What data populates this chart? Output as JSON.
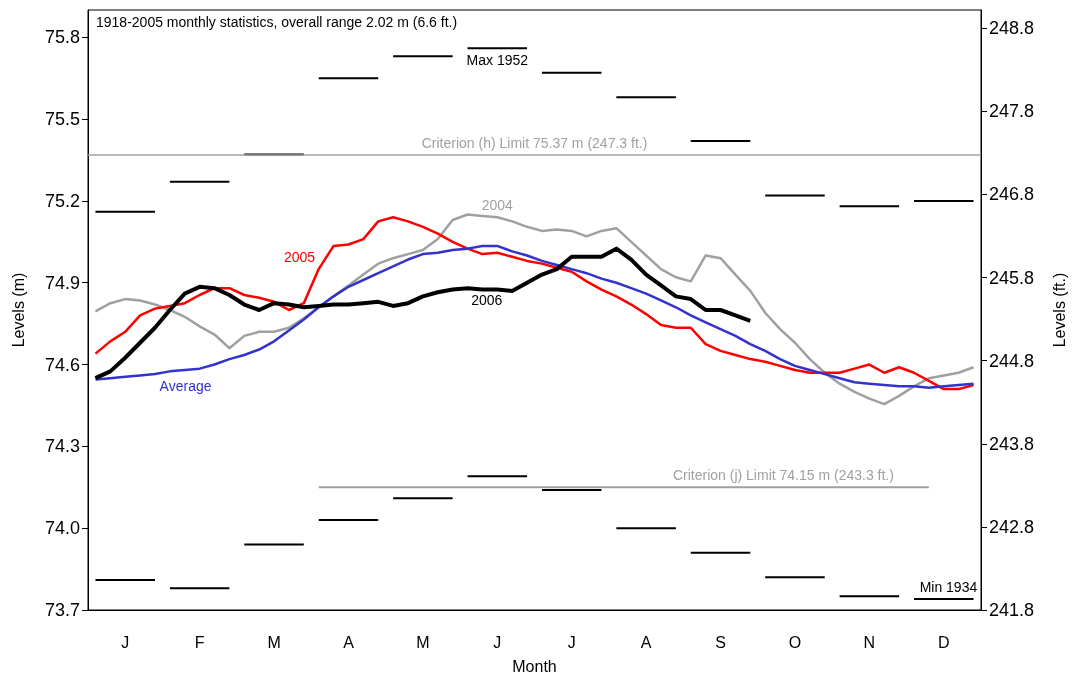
{
  "chart_data": {
    "type": "line",
    "xlabel": "Month",
    "ylabel": "Levels (m)",
    "y2label": "Levels (ft.)",
    "categories": [
      null,
      null,
      "J",
      null,
      null,
      null,
      null,
      "F",
      null,
      null,
      null,
      null,
      "M",
      null,
      null,
      null,
      null,
      "A",
      null,
      null,
      null,
      null,
      "M",
      null,
      null,
      null,
      null,
      "J",
      null,
      null,
      null,
      null,
      "J",
      null,
      null,
      null,
      null,
      "A",
      null,
      null,
      null,
      null,
      "S",
      null,
      null,
      null,
      null,
      "O",
      null,
      null,
      null,
      null,
      "N",
      null,
      null,
      null,
      null,
      "D",
      null,
      null
    ],
    "ylim": [
      73.7,
      75.9
    ],
    "yticks": [
      73.7,
      {
        "value": 74,
        "label": "74.0"
      },
      74.3,
      74.6,
      74.9,
      75.2,
      75.5,
      75.8
    ],
    "y2lim": [
      241.8,
      249.02
    ],
    "y2ticks": [
      241.8,
      242.8,
      243.8,
      244.8,
      245.8,
      246.8,
      247.8,
      248.8
    ],
    "grid": false,
    "legend": false,
    "marker": "none",
    "series": [
      {
        "color": "#000000",
        "values": [
          75.16,
          75.16,
          75.16,
          75.16,
          75.16,
          null,
          null,
          null,
          null,
          null,
          75.37,
          75.37,
          75.37,
          75.37,
          75.37,
          null,
          null,
          null,
          null,
          null,
          75.73,
          75.73,
          75.73,
          75.73,
          75.73,
          null,
          null,
          null,
          null,
          null,
          75.67,
          75.67,
          75.67,
          75.67,
          75.67,
          null,
          null,
          null,
          null,
          null,
          75.42,
          75.42,
          75.42,
          75.42,
          75.42,
          null,
          null,
          null,
          null,
          null,
          75.18,
          75.18,
          75.18,
          75.18,
          75.18,
          null,
          null,
          null,
          null,
          null
        ]
      },
      {
        "color": "#000000",
        "values": [
          null,
          null,
          null,
          null,
          null,
          75.27,
          75.27,
          75.27,
          75.27,
          75.27,
          null,
          null,
          null,
          null,
          null,
          75.65,
          75.65,
          75.65,
          75.65,
          75.65,
          null,
          null,
          null,
          null,
          null,
          75.76,
          75.76,
          75.76,
          75.76,
          75.76,
          null,
          null,
          null,
          null,
          null,
          75.58,
          75.58,
          75.58,
          75.58,
          75.58,
          null,
          null,
          null,
          null,
          null,
          75.22,
          75.22,
          75.22,
          75.22,
          75.22,
          null,
          null,
          null,
          null,
          null,
          75.2,
          75.2,
          75.2,
          75.2,
          75.2
        ]
      },
      {
        "color": "#000000",
        "values": [
          73.81,
          73.81,
          73.81,
          73.81,
          73.81,
          null,
          null,
          null,
          null,
          null,
          73.94,
          73.94,
          73.94,
          73.94,
          73.94,
          null,
          null,
          null,
          null,
          null,
          74.11,
          74.11,
          74.11,
          74.11,
          74.11,
          null,
          null,
          null,
          null,
          null,
          74.14,
          74.14,
          74.14,
          74.14,
          74.14,
          null,
          null,
          null,
          null,
          null,
          73.91,
          73.91,
          73.91,
          73.91,
          73.91,
          null,
          null,
          null,
          null,
          null,
          73.75,
          73.75,
          73.75,
          73.75,
          73.75,
          null,
          null,
          null,
          null,
          null
        ]
      },
      {
        "color": "#000000",
        "values": [
          null,
          null,
          null,
          null,
          null,
          73.78,
          73.78,
          73.78,
          73.78,
          73.78,
          null,
          null,
          null,
          null,
          null,
          74.03,
          74.03,
          74.03,
          74.03,
          74.03,
          null,
          null,
          null,
          null,
          null,
          74.19,
          74.19,
          74.19,
          74.19,
          74.19,
          null,
          null,
          null,
          null,
          null,
          74.0,
          74.0,
          74.0,
          74.0,
          74.0,
          null,
          null,
          null,
          null,
          null,
          73.82,
          73.82,
          73.82,
          73.82,
          73.82,
          null,
          null,
          null,
          null,
          null,
          73.74,
          73.74,
          73.74,
          73.74,
          73.74
        ]
      },
      {
        "color": "#a0a0a0",
        "values": [
          null,
          null,
          null,
          null,
          null,
          null,
          null,
          null,
          null,
          null,
          null,
          null,
          null,
          null,
          null,
          74.15,
          74.15,
          74.15,
          74.15,
          74.15,
          74.15,
          74.15,
          74.15,
          74.15,
          74.15,
          74.15,
          74.15,
          74.15,
          74.15,
          74.15,
          74.15,
          74.15,
          74.15,
          74.15,
          74.15,
          74.15,
          74.15,
          74.15,
          74.15,
          74.15,
          74.15,
          74.15,
          74.15,
          74.15,
          74.15,
          74.15,
          74.15,
          74.15,
          74.15,
          74.15,
          74.15,
          74.15,
          74.15,
          74.15,
          74.15,
          74.15,
          74.15,
          null,
          null,
          null
        ]
      },
      {
        "name": "2004",
        "color": "#a0a0a0",
        "values": [
          74.795,
          74.825,
          74.84,
          74.835,
          74.82,
          74.8,
          74.775,
          74.74,
          74.71,
          74.66,
          74.705,
          74.72,
          74.72,
          74.735,
          74.77,
          74.81,
          74.85,
          74.89,
          74.93,
          74.97,
          74.99,
          75.005,
          75.02,
          75.06,
          75.13,
          75.15,
          75.145,
          75.14,
          75.125,
          75.105,
          75.09,
          75.095,
          75.09,
          75.07,
          75.09,
          75.1,
          75.05,
          75.0,
          74.95,
          74.92,
          74.905,
          75.0,
          74.99,
          74.93,
          74.87,
          74.79,
          74.73,
          74.68,
          74.62,
          74.57,
          74.53,
          74.5,
          74.475,
          74.455,
          74.485,
          74.52,
          74.55,
          74.56,
          74.57,
          74.59
        ]
      },
      {
        "name": "2005",
        "color": "#ff0000",
        "values": [
          74.64,
          74.685,
          74.72,
          74.78,
          74.805,
          74.815,
          74.825,
          74.855,
          74.88,
          74.88,
          74.855,
          74.845,
          74.83,
          74.8,
          74.825,
          74.95,
          75.035,
          75.04,
          75.06,
          75.125,
          75.14,
          75.125,
          75.105,
          75.08,
          75.05,
          75.025,
          75.005,
          75.01,
          74.995,
          74.98,
          74.97,
          74.955,
          74.94,
          74.905,
          74.875,
          74.85,
          74.82,
          74.785,
          74.745,
          74.735,
          74.735,
          74.675,
          74.65,
          74.635,
          74.62,
          74.61,
          74.595,
          74.58,
          74.57,
          74.57,
          74.57,
          74.585,
          74.6,
          74.57,
          74.59,
          74.57,
          74.54,
          74.51,
          74.51,
          74.525
        ]
      },
      {
        "name": "Average",
        "color": "#3333cc",
        "values": [
          74.545,
          74.55,
          74.555,
          74.56,
          74.565,
          74.575,
          74.58,
          74.585,
          74.6,
          74.62,
          74.635,
          74.655,
          74.685,
          74.725,
          74.765,
          74.81,
          74.85,
          74.885,
          74.91,
          74.935,
          74.96,
          74.985,
          75.005,
          75.01,
          75.02,
          75.025,
          75.035,
          75.035,
          75.015,
          75.0,
          74.98,
          74.965,
          74.95,
          74.935,
          74.915,
          74.9,
          74.88,
          74.86,
          74.835,
          74.81,
          74.78,
          74.755,
          74.73,
          74.705,
          74.675,
          74.65,
          74.62,
          74.595,
          74.58,
          74.565,
          74.55,
          74.535,
          74.53,
          74.525,
          74.52,
          74.52,
          74.515,
          74.52,
          74.525,
          74.53
        ]
      },
      {
        "name": "2006",
        "color": "#000000",
        "values": [
          74.55,
          74.575,
          74.625,
          74.68,
          74.735,
          74.8,
          74.86,
          74.885,
          74.88,
          74.855,
          74.82,
          74.8,
          74.825,
          74.82,
          74.81,
          74.815,
          74.82,
          74.82,
          74.825,
          74.83,
          74.815,
          74.825,
          74.85,
          74.865,
          74.875,
          74.88,
          74.875,
          74.875,
          74.87,
          74.9,
          74.93,
          74.95,
          74.995,
          74.995,
          74.995,
          75.025,
          74.985,
          74.93,
          74.89,
          74.85,
          74.84,
          74.8,
          74.8,
          74.78,
          74.76,
          null,
          null,
          null,
          null,
          null,
          null,
          null,
          null,
          null,
          null,
          null,
          null,
          null,
          null,
          null
        ]
      }
    ],
    "ref_lines": [
      {
        "axis": "y",
        "value": 75.37,
        "label": "Criterion (h) Limit 75.37 m (247.3 ft.)",
        "color": "#a0a0a0"
      }
    ],
    "annotations": [
      "1918-2005 monthly statistics, overall range 2.02 m (6.6 ft.)",
      {
        "text": "Max 1952",
        "y": 75.76
      },
      {
        "text": "Min 1934",
        "y": 73.74
      },
      {
        "text": "Criterion (j) Limit 74.15 m (243.3 ft.)",
        "y": 74.15
      }
    ]
  }
}
